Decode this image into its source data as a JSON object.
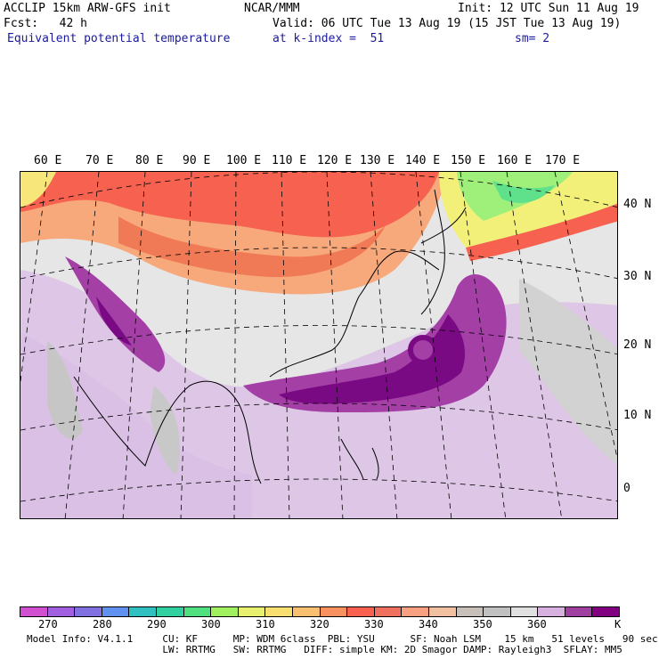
{
  "header": {
    "line1_left": "ACCLIP 15km ARW-GFS init",
    "line1_center": "NCAR/MMM",
    "line1_right": "Init: 12 UTC Sun 11 Aug 19",
    "line2_left": "Fcst:   42 h",
    "line2_right": "Valid: 06 UTC Tue 13 Aug 19 (15 JST Tue 13 Aug 19)",
    "line3_left": "Equivalent potential temperature",
    "line3_center": "at k-index =  51",
    "line3_right": "sm= 2"
  },
  "map": {
    "lon_labels": [
      "60 E",
      "70 E",
      "80 E",
      "90 E",
      "100 E",
      "110 E",
      "120 E",
      "130 E",
      "140 E",
      "150 E",
      "160 E",
      "170 E"
    ],
    "lat_labels": [
      "40 N",
      "30 N",
      "20 N",
      "10 N",
      "0"
    ]
  },
  "colorbar": {
    "colors": [
      "#d050d0",
      "#a060e0",
      "#8070e0",
      "#6090f0",
      "#30c0c0",
      "#30d0a0",
      "#50e080",
      "#a0f060",
      "#e8f070",
      "#f8e070",
      "#f8c070",
      "#f89060",
      "#f86050",
      "#f07060",
      "#f8a080",
      "#f0c0a0",
      "#c8c0b8",
      "#c0c0c0",
      "#e0e0e0",
      "#d8b0e0",
      "#a040a0",
      "#800080"
    ],
    "labels": [
      "270",
      "280",
      "290",
      "300",
      "310",
      "320",
      "330",
      "340",
      "350",
      "360",
      "K"
    ],
    "unit": "K"
  },
  "model_info": {
    "line1": "Model Info: V4.1.1     CU: KF      MP: WDM 6class  PBL: YSU      SF: Noah LSM    15 km   51 levels   90 sec",
    "line2": "                       LW: RRTMG   SW: RRTMG   DIFF: simple KM: 2D Smagor DAMP: Rayleigh3  SFLAY: MM5"
  }
}
